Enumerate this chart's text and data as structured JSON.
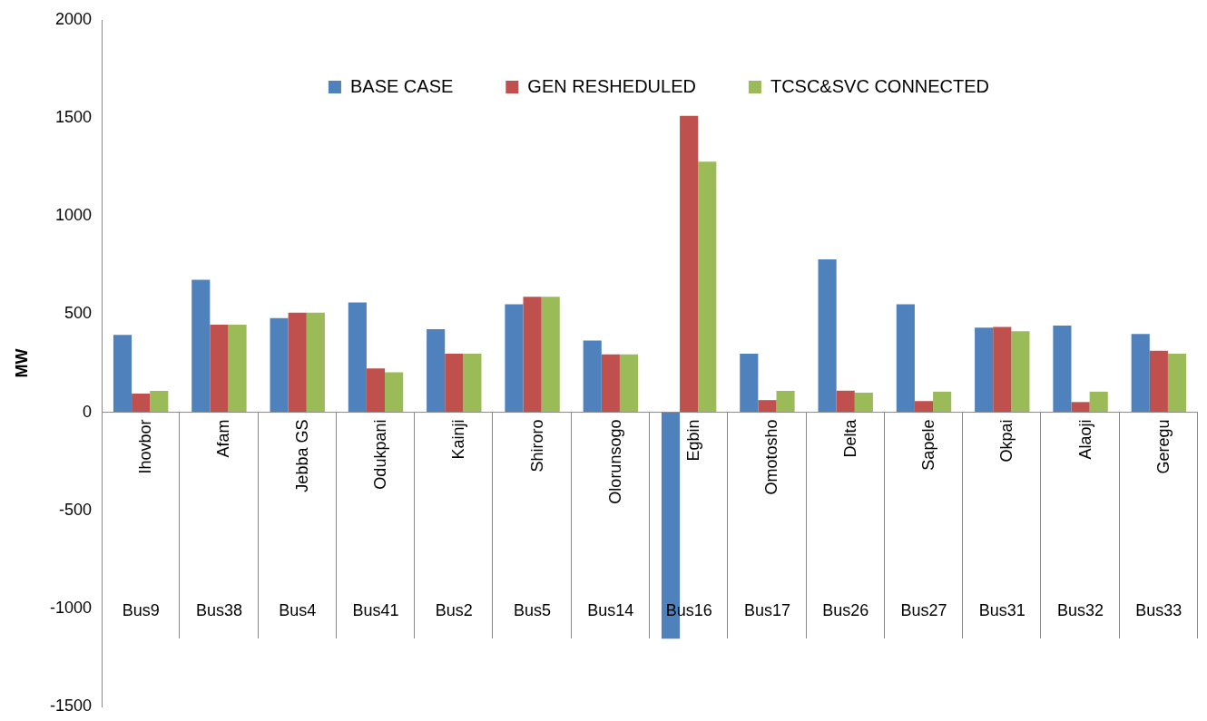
{
  "chart_data": {
    "type": "bar",
    "ylabel": "MW",
    "categories": [
      "Ihovbor",
      "Afam",
      "Jebba GS",
      "Odukpani",
      "Kainji",
      "Shiroro",
      "Olorunsogo",
      "Egbin",
      "Omotosho",
      "Delta",
      "Sapele",
      "Okpai",
      "Alaoji",
      "Geregu"
    ],
    "series": [
      {
        "name": "BASE CASE",
        "color": "#4f81bd",
        "values": [
          395,
          675,
          480,
          560,
          423,
          551,
          366,
          -1154,
          299,
          779,
          551,
          432,
          442,
          399
        ]
      },
      {
        "name": "GEN RESHEDULED",
        "color": "#c0504d",
        "values": [
          95,
          447,
          508,
          223,
          299,
          589,
          295,
          1511,
          62,
          110,
          57,
          435,
          52,
          314
        ]
      },
      {
        "name": "TCSC&SVC CONNECTED",
        "color": "#9bbb59",
        "values": [
          109,
          447,
          508,
          204,
          299,
          589,
          295,
          1278,
          109,
          100,
          105,
          413,
          105,
          299
        ]
      }
    ],
    "annotations": [
      "Bus9",
      "Bus38",
      "Bus4",
      "Bus41",
      "Bus2",
      "Bus5",
      "Bus14",
      "Bus16",
      "Bus17",
      "Bus26",
      "Bus27",
      "Bus31",
      "Bus32",
      "Bus33"
    ],
    "ylim": [
      -1500,
      2000
    ],
    "yticks": [
      -1500,
      -1000,
      -500,
      0,
      500,
      1000,
      1500,
      2000
    ],
    "grid": false,
    "legend": "top"
  }
}
